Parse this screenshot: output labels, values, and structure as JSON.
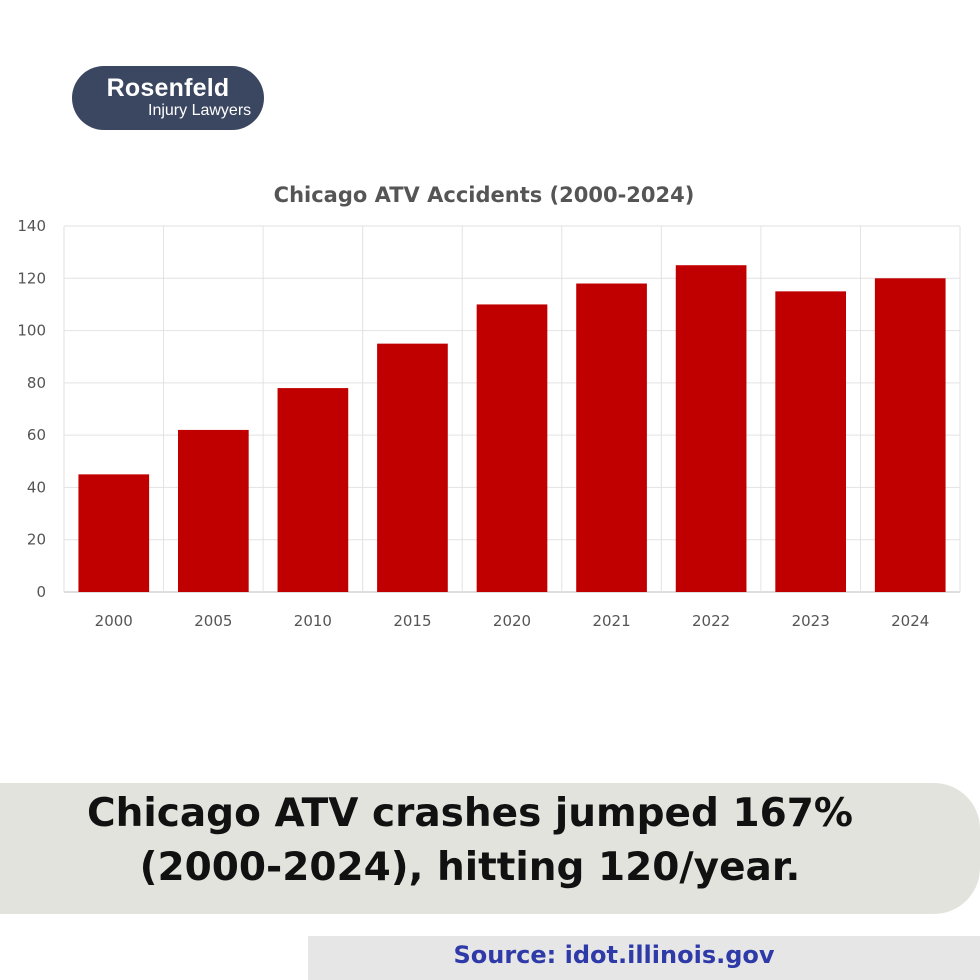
{
  "logo": {
    "name": "Rosenfeld",
    "tagline": "Injury Lawyers"
  },
  "chart_data": {
    "type": "bar",
    "title": "Chicago ATV Accidents (2000-2024)",
    "categories": [
      "2000",
      "2005",
      "2010",
      "2015",
      "2020",
      "2021",
      "2022",
      "2023",
      "2024"
    ],
    "values": [
      45,
      62,
      78,
      95,
      110,
      118,
      125,
      115,
      120
    ],
    "ylim": [
      0,
      140
    ],
    "yticks": [
      0,
      20,
      40,
      60,
      80,
      100,
      120,
      140
    ],
    "xlabel": "",
    "ylabel": "",
    "grid": true,
    "bar_color": "#c00000",
    "legend": "none"
  },
  "caption": {
    "line1": "Chicago ATV crashes jumped 167%",
    "line2": "(2000-2024), hitting 120/year."
  },
  "source": {
    "text": "Source: idot.illinois.gov"
  },
  "colors": {
    "bar": "#c00000",
    "logo_bg": "#3b4660",
    "source_text": "#2e3aa8"
  }
}
